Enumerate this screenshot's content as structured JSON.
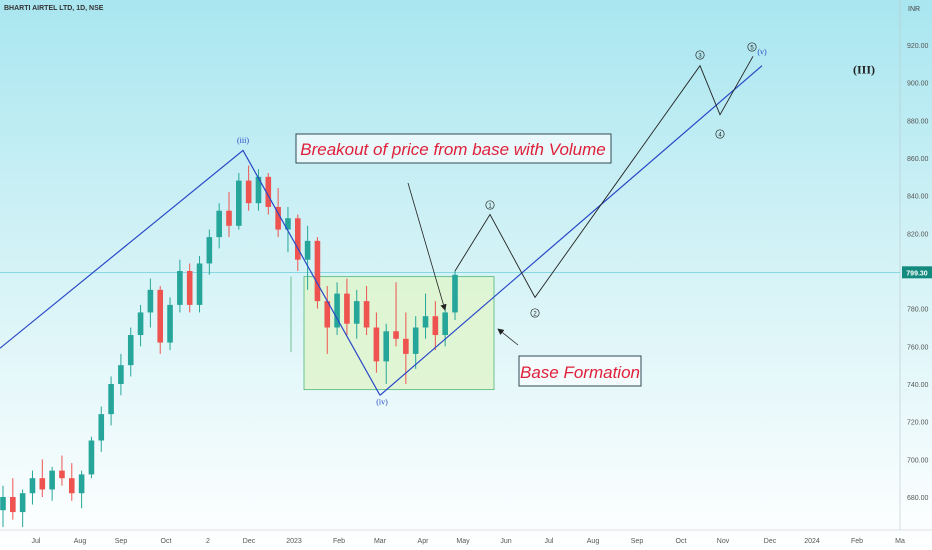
{
  "symbol": "BHARTI AIRTEL LTD, 1D, NSE",
  "currency": "INR",
  "chart_data": {
    "type": "candlestick",
    "ylim": [
      664,
      932
    ],
    "y_ticks": [
      680,
      700,
      720,
      740,
      760,
      780,
      800,
      820,
      840,
      860,
      880,
      900,
      920
    ],
    "x_ticks": [
      "Jul",
      "Aug",
      "Sep",
      "Oct",
      "2",
      "Dec",
      "2023",
      "Feb",
      "Mar",
      "Apr",
      "May",
      "Jun",
      "Jul",
      "Aug",
      "Sep",
      "Oct",
      "Nov",
      "Dec",
      "2024",
      "Feb",
      "Ma"
    ],
    "last_price": "799.30",
    "candles_weekly_approx": [
      {
        "o": 673,
        "h": 686,
        "l": 664,
        "c": 680
      },
      {
        "o": 680,
        "h": 690,
        "l": 668,
        "c": 672
      },
      {
        "o": 672,
        "h": 684,
        "l": 664,
        "c": 682
      },
      {
        "o": 682,
        "h": 694,
        "l": 676,
        "c": 690
      },
      {
        "o": 690,
        "h": 700,
        "l": 680,
        "c": 684
      },
      {
        "o": 684,
        "h": 696,
        "l": 678,
        "c": 694
      },
      {
        "o": 694,
        "h": 702,
        "l": 686,
        "c": 690
      },
      {
        "o": 690,
        "h": 698,
        "l": 678,
        "c": 682
      },
      {
        "o": 682,
        "h": 694,
        "l": 674,
        "c": 692
      },
      {
        "o": 692,
        "h": 712,
        "l": 690,
        "c": 710
      },
      {
        "o": 710,
        "h": 728,
        "l": 704,
        "c": 724
      },
      {
        "o": 724,
        "h": 744,
        "l": 718,
        "c": 740
      },
      {
        "o": 740,
        "h": 756,
        "l": 734,
        "c": 750
      },
      {
        "o": 750,
        "h": 770,
        "l": 744,
        "c": 766
      },
      {
        "o": 766,
        "h": 782,
        "l": 760,
        "c": 778
      },
      {
        "o": 778,
        "h": 796,
        "l": 770,
        "c": 790
      },
      {
        "o": 790,
        "h": 792,
        "l": 756,
        "c": 762
      },
      {
        "o": 762,
        "h": 786,
        "l": 758,
        "c": 782
      },
      {
        "o": 782,
        "h": 806,
        "l": 778,
        "c": 800
      },
      {
        "o": 800,
        "h": 804,
        "l": 778,
        "c": 782
      },
      {
        "o": 782,
        "h": 808,
        "l": 778,
        "c": 804
      },
      {
        "o": 804,
        "h": 822,
        "l": 798,
        "c": 818
      },
      {
        "o": 818,
        "h": 836,
        "l": 812,
        "c": 832
      },
      {
        "o": 832,
        "h": 842,
        "l": 818,
        "c": 824
      },
      {
        "o": 824,
        "h": 852,
        "l": 822,
        "c": 848
      },
      {
        "o": 848,
        "h": 856,
        "l": 832,
        "c": 836
      },
      {
        "o": 836,
        "h": 854,
        "l": 832,
        "c": 850
      },
      {
        "o": 850,
        "h": 852,
        "l": 830,
        "c": 834
      },
      {
        "o": 834,
        "h": 844,
        "l": 818,
        "c": 822
      },
      {
        "o": 822,
        "h": 834,
        "l": 810,
        "c": 828
      },
      {
        "o": 828,
        "h": 830,
        "l": 800,
        "c": 806
      },
      {
        "o": 806,
        "h": 824,
        "l": 790,
        "c": 816
      },
      {
        "o": 816,
        "h": 818,
        "l": 780,
        "c": 784
      },
      {
        "o": 784,
        "h": 792,
        "l": 756,
        "c": 770
      },
      {
        "o": 770,
        "h": 794,
        "l": 766,
        "c": 788
      },
      {
        "o": 788,
        "h": 796,
        "l": 766,
        "c": 772
      },
      {
        "o": 772,
        "h": 790,
        "l": 764,
        "c": 784
      },
      {
        "o": 784,
        "h": 792,
        "l": 766,
        "c": 770
      },
      {
        "o": 770,
        "h": 778,
        "l": 746,
        "c": 752
      },
      {
        "o": 752,
        "h": 772,
        "l": 740,
        "c": 768
      },
      {
        "o": 768,
        "h": 794,
        "l": 760,
        "c": 764
      },
      {
        "o": 764,
        "h": 778,
        "l": 740,
        "c": 756
      },
      {
        "o": 756,
        "h": 776,
        "l": 748,
        "c": 770
      },
      {
        "o": 770,
        "h": 788,
        "l": 764,
        "c": 776
      },
      {
        "o": 776,
        "h": 784,
        "l": 758,
        "c": 766
      },
      {
        "o": 766,
        "h": 782,
        "l": 760,
        "c": 778
      },
      {
        "o": 778,
        "h": 800,
        "l": 774,
        "c": 798
      }
    ],
    "base_box": {
      "y_top": 797,
      "y_bottom": 737
    },
    "wave_labels": [
      {
        "text": "(iii)",
        "y": 868
      },
      {
        "text": "(iv)",
        "y": 729
      },
      {
        "text": "(v)",
        "y": 915
      },
      {
        "text": "(III)",
        "y": 905
      }
    ],
    "projection_labels": [
      "1",
      "2",
      "3",
      "4",
      "5"
    ],
    "annotations": [
      "Breakout of price from base with Volume",
      "Base Formation"
    ],
    "colors": {
      "up": "#26a69a",
      "down": "#ef5350",
      "trendline": "#2948c7",
      "projection": "#222222",
      "price_line": "#5ac8d8",
      "price_tag": "#138a7e",
      "note_text": "#e0203a"
    }
  }
}
